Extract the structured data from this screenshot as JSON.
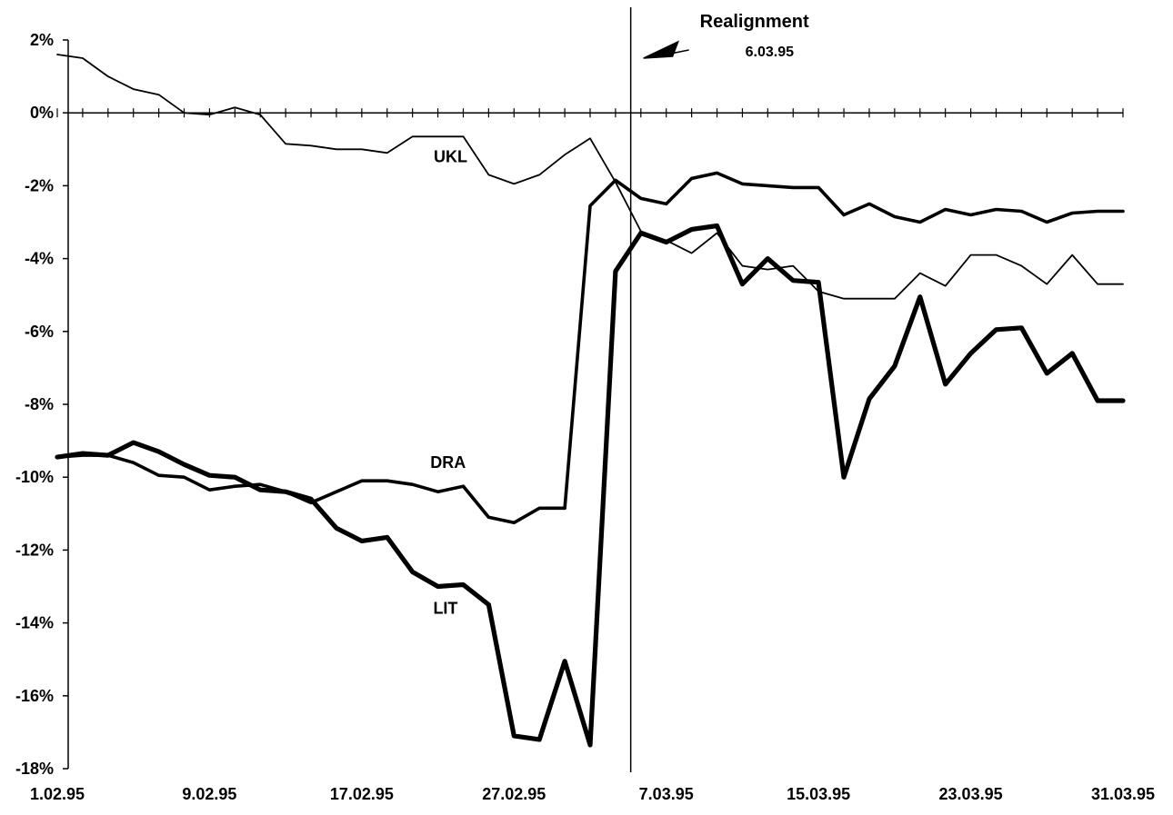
{
  "chart_data": {
    "type": "line",
    "ylim": [
      -18,
      2
    ],
    "y_ticks": [
      2,
      0,
      -2,
      -4,
      -6,
      -8,
      -10,
      -12,
      -14,
      -16,
      -18
    ],
    "y_tick_labels": [
      "2%",
      "0%",
      "-2%",
      "-4%",
      "-6%",
      "-8%",
      "-10%",
      "-12%",
      "-14%",
      "-16%",
      "-18%"
    ],
    "x_tick_labels": [
      "1.02.95",
      "9.02.95",
      "17.02.95",
      "27.02.95",
      "7.03.95",
      "15.03.95",
      "23.03.95",
      "31.03.95"
    ],
    "x_tick_label_index": [
      0,
      6,
      12,
      18,
      24,
      30,
      36,
      42
    ],
    "n_points": 43,
    "grid": false,
    "annotation": {
      "title": "Realignment",
      "date": "6.03.95",
      "x_index": 22.6
    },
    "series": [
      {
        "name": "UKL",
        "stroke": "thin",
        "label_index": 15.5,
        "label_value": -1.2,
        "values": [
          1.6,
          1.5,
          1.0,
          0.65,
          0.5,
          0.0,
          -0.05,
          0.15,
          -0.05,
          -0.85,
          -0.9,
          -1.0,
          -1.0,
          -1.1,
          -0.65,
          -0.65,
          -0.65,
          -1.7,
          -1.95,
          -1.7,
          -1.15,
          -0.7,
          -1.9,
          -3.25,
          -3.5,
          -3.85,
          -3.3,
          -4.2,
          -4.3,
          -4.2,
          -4.9,
          -5.1,
          -5.1,
          -5.1,
          -4.4,
          -4.75,
          -3.9,
          -3.9,
          -4.2,
          -4.7,
          -3.9,
          -4.7,
          -4.7
        ]
      },
      {
        "name": "DRA",
        "stroke": "medium",
        "label_index": 15.4,
        "label_value": -9.6,
        "values": [
          -9.45,
          -9.4,
          -9.4,
          -9.6,
          -9.95,
          -10.0,
          -10.35,
          -10.25,
          -10.2,
          -10.4,
          -10.7,
          -10.4,
          -10.1,
          -10.1,
          -10.2,
          -10.4,
          -10.25,
          -11.1,
          -11.25,
          -10.85,
          -10.85,
          -2.55,
          -1.85,
          -2.35,
          -2.5,
          -1.8,
          -1.65,
          -1.95,
          -2.0,
          -2.05,
          -2.05,
          -2.8,
          -2.5,
          -2.85,
          -3.0,
          -2.65,
          -2.8,
          -2.65,
          -2.7,
          -3.0,
          -2.75,
          -2.7,
          -2.7
        ]
      },
      {
        "name": "LIT",
        "stroke": "thick",
        "label_index": 15.3,
        "label_value": -13.6,
        "values": [
          -9.45,
          -9.35,
          -9.4,
          -9.05,
          -9.3,
          -9.65,
          -9.95,
          -10.0,
          -10.35,
          -10.4,
          -10.6,
          -11.4,
          -11.75,
          -11.65,
          -12.6,
          -13.0,
          -12.95,
          -13.5,
          -17.1,
          -17.2,
          -15.05,
          -17.35,
          -4.35,
          -3.3,
          -3.55,
          -3.2,
          -3.1,
          -4.7,
          -4.0,
          -4.6,
          -4.65,
          -10.0,
          -7.85,
          -6.95,
          -5.05,
          -7.45,
          -6.6,
          -5.95,
          -5.9,
          -7.15,
          -6.6,
          -7.9,
          -7.9
        ]
      }
    ]
  }
}
